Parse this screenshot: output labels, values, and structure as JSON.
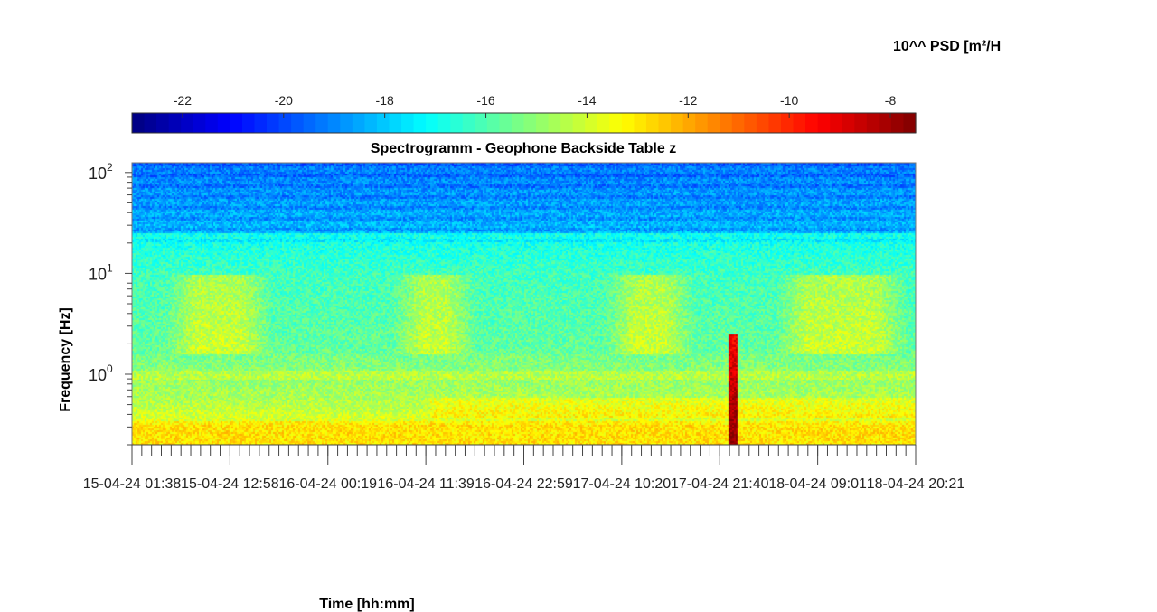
{
  "chart_data": {
    "type": "heatmap",
    "title": "Spectrogramm - Geophone Backside Table z",
    "xlabel": "Time [hh:mm]",
    "ylabel": "Frequency [Hz]",
    "colorbar_label": "10^^ PSD [m²/H",
    "colorbar_range": [
      -23,
      -7.5
    ],
    "colorbar_ticks": [
      "-22",
      "-20",
      "-18",
      "-16",
      "-14",
      "-12",
      "-10",
      "-8"
    ],
    "colormap": "jet",
    "y_scale": "log",
    "ylim": [
      0.2,
      125
    ],
    "y_tick_labels": [
      {
        "base": "10",
        "exp": "2",
        "value": 100
      },
      {
        "base": "10",
        "exp": "1",
        "value": 10
      },
      {
        "base": "10",
        "exp": "0",
        "value": 1
      }
    ],
    "x_tick_labels": [
      "15-04-24  01:38",
      "15-04-24  12:58",
      "16-04-24  00:19",
      "16-04-24  11:39",
      "16-04-24  22:59",
      "17-04-24  10:20",
      "17-04-24  21:40",
      "18-04-24  09:01",
      "18-04-24  20:21"
    ],
    "event": {
      "time_fraction": 0.765,
      "level": -7.8,
      "max_frequency_hz": 2.5
    },
    "grid": false
  }
}
